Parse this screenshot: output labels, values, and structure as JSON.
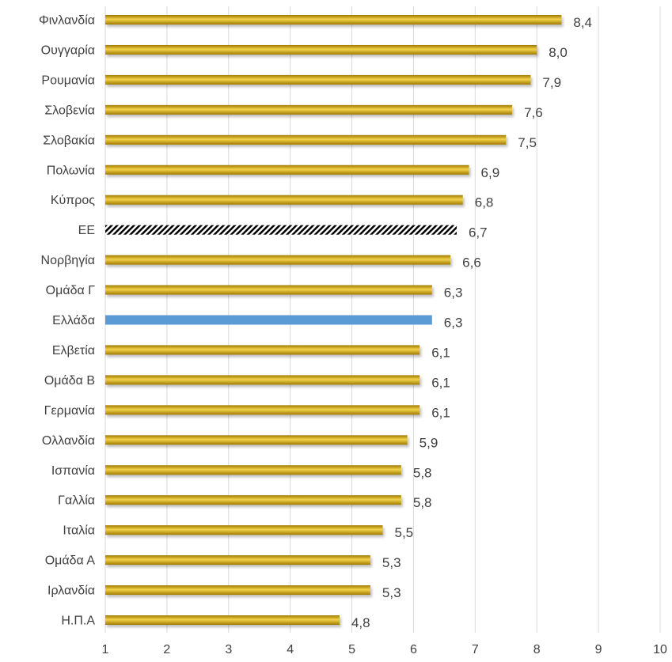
{
  "chart_data": {
    "type": "bar",
    "orientation": "horizontal",
    "categories": [
      "Φινλανδία",
      "Ουγγαρία",
      "Ρουμανία",
      "Σλοβενία",
      "Σλοβακία",
      "Πολωνία",
      "Κύπρος",
      "ΕΕ",
      "Νορβηγία",
      "Ομάδα Γ",
      "Ελλάδα",
      "Ελβετία",
      "Ομάδα Β",
      "Γερμανία",
      "Ολλανδία",
      "Ισπανία",
      "Γαλλία",
      "Ιταλία",
      "Ομάδα Α",
      "Ιρλανδία",
      "Η.Π.Α"
    ],
    "values": [
      8.4,
      8.0,
      7.9,
      7.6,
      7.5,
      6.9,
      6.8,
      6.7,
      6.6,
      6.3,
      6.3,
      6.1,
      6.1,
      6.1,
      5.9,
      5.8,
      5.8,
      5.5,
      5.3,
      5.3,
      4.8
    ],
    "value_labels": [
      "8,4",
      "8,0",
      "7,9",
      "7,6",
      "7,5",
      "6,9",
      "6,8",
      "6,7",
      "6,6",
      "6,3",
      "6,3",
      "6,1",
      "6,1",
      "6,1",
      "5,9",
      "5,8",
      "5,8",
      "5,5",
      "5,3",
      "5,3",
      "4,8"
    ],
    "bar_styles": [
      "gold",
      "gold",
      "gold",
      "gold",
      "gold",
      "gold",
      "gold",
      "hatched",
      "gold",
      "gold",
      "blue",
      "gold",
      "gold",
      "gold",
      "gold",
      "gold",
      "gold",
      "gold",
      "gold",
      "gold",
      "gold"
    ],
    "xlim": [
      1,
      10
    ],
    "xticks": [
      "1",
      "2",
      "3",
      "4",
      "5",
      "6",
      "7",
      "8",
      "9",
      "10"
    ],
    "title": "",
    "xlabel": "",
    "ylabel": "",
    "grid": "vertical",
    "legend": "none",
    "colors": {
      "gold_dark": "#a07a00",
      "gold_mid": "#c9a000",
      "gold_light": "#f2d24a",
      "blue": "#5b9bd5",
      "hatch_dark": "#000000",
      "hatch_light": "#ffffff",
      "grid": "#d9d9d9",
      "text": "#404040"
    }
  }
}
